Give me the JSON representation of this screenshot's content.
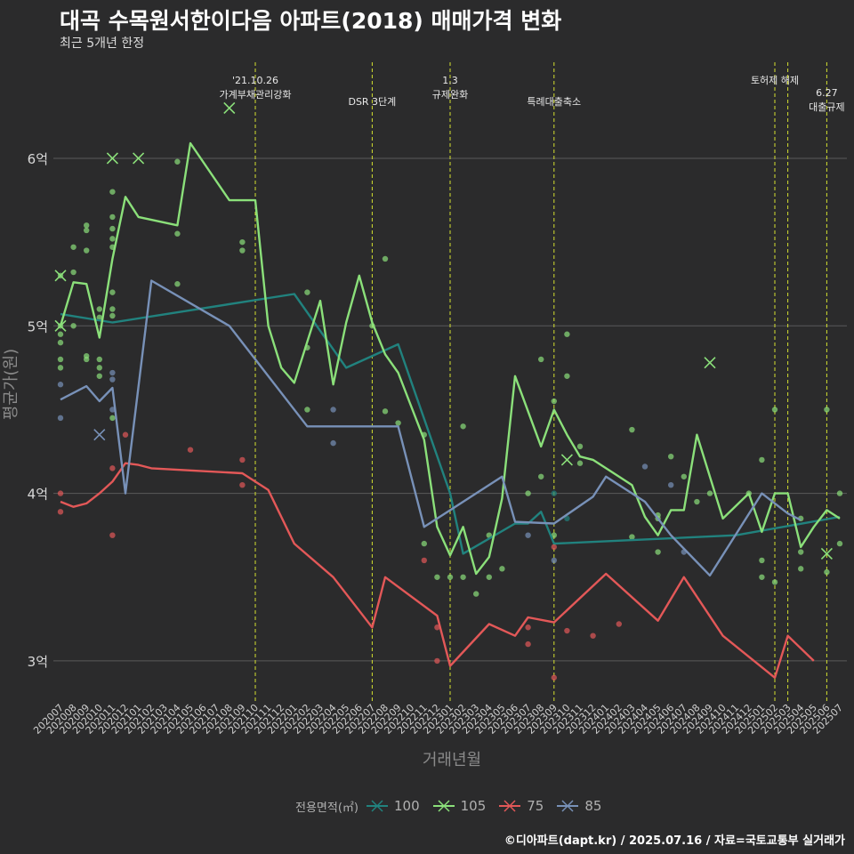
{
  "title": "대곡 수목원서한이다음 아파트(2018) 매매가격 변화",
  "subtitle": "최근 5개년 한정",
  "caption": "©디아파트(dapt.kr) / 2025.07.16 / 자료=국토교통부 실거래가",
  "legend": {
    "title": "전용면적(㎡)",
    "items": [
      {
        "label": "100",
        "color": "#21827e"
      },
      {
        "label": "105",
        "color": "#8be07a"
      },
      {
        "label": "75",
        "color": "#e35858"
      },
      {
        "label": "85",
        "color": "#7891b8"
      }
    ]
  },
  "chart_data": {
    "type": "line",
    "xlabel": "거래년월",
    "ylabel": "평균가(원)",
    "yticks": [
      {
        "value": 3,
        "label": "3억"
      },
      {
        "value": 4,
        "label": "4억"
      },
      {
        "value": 5,
        "label": "5억"
      },
      {
        "value": 6,
        "label": "6억"
      }
    ],
    "ylim": [
      2.75,
      6.6
    ],
    "grid": true,
    "categories": [
      "202007",
      "202008",
      "202009",
      "202010",
      "202011",
      "202012",
      "202101",
      "202102",
      "202103",
      "202104",
      "202105",
      "202106",
      "202107",
      "202108",
      "202109",
      "202110",
      "202111",
      "202112",
      "202201",
      "202202",
      "202203",
      "202204",
      "202205",
      "202206",
      "202207",
      "202208",
      "202209",
      "202210",
      "202211",
      "202212",
      "202301",
      "202302",
      "202303",
      "202304",
      "202305",
      "202306",
      "202307",
      "202308",
      "202309",
      "202310",
      "202311",
      "202312",
      "202401",
      "202402",
      "202403",
      "202404",
      "202405",
      "202406",
      "202407",
      "202408",
      "202409",
      "202410",
      "202411",
      "202412",
      "202501",
      "202502",
      "202503",
      "202504",
      "202505",
      "202506",
      "202507"
    ],
    "events": [
      {
        "x": 15.0,
        "lines": [
          "'21.10.26",
          "가계부채관리강화"
        ],
        "level": 0
      },
      {
        "x": 24.0,
        "lines": [
          "DSR 3단계"
        ],
        "level": 1
      },
      {
        "x": 30.0,
        "lines": [
          "1.3",
          "규제완화"
        ],
        "level": 0
      },
      {
        "x": 38.0,
        "lines": [
          "특례대출축소"
        ],
        "level": 1
      },
      {
        "x": 55.0,
        "lines": [
          "토허제 해제"
        ],
        "level": 0
      },
      {
        "x": 56.0,
        "lines": [],
        "level": 0
      },
      {
        "x": 59.0,
        "lines": [
          "6.27",
          "대출규제"
        ],
        "level": 1
      }
    ],
    "series": [
      {
        "name": "100",
        "color": "#21827e",
        "points": [
          [
            0,
            5.07
          ],
          [
            4,
            5.02
          ],
          [
            18,
            5.19
          ],
          [
            22,
            4.75
          ],
          [
            26,
            4.89
          ],
          [
            30,
            4.0
          ],
          [
            31,
            3.64
          ],
          [
            35,
            3.82
          ],
          [
            36,
            3.82
          ],
          [
            37,
            3.89
          ],
          [
            38,
            3.7
          ],
          [
            52,
            3.75
          ],
          [
            60,
            3.86
          ]
        ]
      },
      {
        "name": "105",
        "color": "#8be07a",
        "points": [
          [
            0,
            5.0
          ],
          [
            1,
            5.26
          ],
          [
            2,
            5.25
          ],
          [
            3,
            4.93
          ],
          [
            4,
            5.4
          ],
          [
            5,
            5.77
          ],
          [
            6,
            5.65
          ],
          [
            9,
            5.6
          ],
          [
            10,
            6.09
          ],
          [
            13,
            5.75
          ],
          [
            15,
            5.75
          ],
          [
            16,
            5.0
          ],
          [
            17,
            4.75
          ],
          [
            18,
            4.66
          ],
          [
            20,
            5.15
          ],
          [
            21,
            4.65
          ],
          [
            22,
            5.02
          ],
          [
            23,
            5.3
          ],
          [
            24,
            5.02
          ],
          [
            25,
            4.83
          ],
          [
            26,
            4.72
          ],
          [
            28,
            4.32
          ],
          [
            29,
            3.8
          ],
          [
            30,
            3.63
          ],
          [
            31,
            3.8
          ],
          [
            32,
            3.52
          ],
          [
            33,
            3.62
          ],
          [
            34,
            3.97
          ],
          [
            35,
            4.7
          ],
          [
            37,
            4.28
          ],
          [
            38,
            4.5
          ],
          [
            39,
            4.35
          ],
          [
            40,
            4.22
          ],
          [
            41,
            4.2
          ],
          [
            43,
            4.1
          ],
          [
            44,
            4.05
          ],
          [
            45,
            3.86
          ],
          [
            46,
            3.75
          ],
          [
            47,
            3.9
          ],
          [
            48,
            3.9
          ],
          [
            49,
            4.35
          ],
          [
            51,
            3.85
          ],
          [
            53,
            4.0
          ],
          [
            54,
            3.77
          ],
          [
            55,
            4.0
          ],
          [
            56,
            4.0
          ],
          [
            57,
            3.68
          ],
          [
            58,
            3.8
          ],
          [
            59,
            3.9
          ],
          [
            60,
            3.85
          ]
        ]
      },
      {
        "name": "75",
        "color": "#e35858",
        "points": [
          [
            0,
            3.95
          ],
          [
            1,
            3.92
          ],
          [
            2,
            3.94
          ],
          [
            3,
            4.0
          ],
          [
            4,
            4.07
          ],
          [
            5,
            4.18
          ],
          [
            6,
            4.17
          ],
          [
            7,
            4.15
          ],
          [
            14,
            4.12
          ],
          [
            16,
            4.02
          ],
          [
            18,
            3.7
          ],
          [
            21,
            3.5
          ],
          [
            24,
            3.2
          ],
          [
            25,
            3.5
          ],
          [
            29,
            3.27
          ],
          [
            30,
            2.97
          ],
          [
            33,
            3.22
          ],
          [
            35,
            3.15
          ],
          [
            36,
            3.26
          ],
          [
            38,
            3.23
          ],
          [
            42,
            3.52
          ],
          [
            46,
            3.24
          ],
          [
            48,
            3.5
          ],
          [
            51,
            3.15
          ],
          [
            55,
            2.9
          ],
          [
            56,
            3.15
          ],
          [
            58,
            3.0
          ]
        ]
      },
      {
        "name": "85",
        "color": "#7891b8",
        "points": [
          [
            0,
            4.56
          ],
          [
            2,
            4.64
          ],
          [
            3,
            4.55
          ],
          [
            4,
            4.63
          ],
          [
            5,
            4.0
          ],
          [
            7,
            5.27
          ],
          [
            13,
            5.0
          ],
          [
            14,
            4.9
          ],
          [
            19,
            4.4
          ],
          [
            26,
            4.4
          ],
          [
            28,
            3.8
          ],
          [
            34,
            4.1
          ],
          [
            35,
            3.83
          ],
          [
            38,
            3.82
          ],
          [
            41,
            3.98
          ],
          [
            42,
            4.1
          ],
          [
            45,
            3.95
          ],
          [
            47,
            3.75
          ],
          [
            50,
            3.51
          ],
          [
            54,
            4.0
          ],
          [
            56,
            3.88
          ],
          [
            57,
            3.84
          ]
        ]
      }
    ],
    "scatter": [
      {
        "series": "105",
        "color": "#8be07a",
        "points": [
          [
            0,
            5.3
          ],
          [
            0,
            5.0
          ],
          [
            0,
            4.95
          ],
          [
            0,
            4.9
          ],
          [
            0,
            4.8
          ],
          [
            0,
            4.75
          ],
          [
            1,
            5.47
          ],
          [
            1,
            5.32
          ],
          [
            1,
            5.0
          ],
          [
            2,
            5.6
          ],
          [
            2,
            5.57
          ],
          [
            2,
            5.45
          ],
          [
            2,
            4.82
          ],
          [
            2,
            4.8
          ],
          [
            3,
            5.1
          ],
          [
            3,
            5.05
          ],
          [
            3,
            4.8
          ],
          [
            3,
            4.75
          ],
          [
            3,
            4.7
          ],
          [
            4,
            5.8
          ],
          [
            4,
            5.65
          ],
          [
            4,
            5.58
          ],
          [
            4,
            5.52
          ],
          [
            4,
            5.47
          ],
          [
            4,
            5.2
          ],
          [
            4,
            5.1
          ],
          [
            4,
            5.06
          ],
          [
            4,
            4.45
          ],
          [
            9,
            5.98
          ],
          [
            9,
            5.55
          ],
          [
            9,
            5.25
          ],
          [
            14,
            5.5
          ],
          [
            14,
            5.45
          ],
          [
            19,
            5.2
          ],
          [
            19,
            4.87
          ],
          [
            19,
            4.5
          ],
          [
            24,
            5.0
          ],
          [
            25,
            5.4
          ],
          [
            25,
            4.49
          ],
          [
            26,
            4.42
          ],
          [
            28,
            4.35
          ],
          [
            28,
            3.7
          ],
          [
            29,
            3.5
          ],
          [
            30,
            3.5
          ],
          [
            31,
            4.4
          ],
          [
            31,
            3.5
          ],
          [
            32,
            3.4
          ],
          [
            33,
            3.5
          ],
          [
            33,
            3.75
          ],
          [
            34,
            3.55
          ],
          [
            36,
            4.0
          ],
          [
            37,
            4.8
          ],
          [
            37,
            4.1
          ],
          [
            38,
            4.55
          ],
          [
            38,
            3.75
          ],
          [
            39,
            4.95
          ],
          [
            39,
            4.7
          ],
          [
            40,
            4.28
          ],
          [
            40,
            4.18
          ],
          [
            44,
            4.38
          ],
          [
            44,
            3.74
          ],
          [
            46,
            3.87
          ],
          [
            46,
            3.85
          ],
          [
            46,
            3.65
          ],
          [
            47,
            4.22
          ],
          [
            48,
            4.1
          ],
          [
            49,
            3.95
          ],
          [
            50,
            4.0
          ],
          [
            53,
            4.0
          ],
          [
            54,
            4.2
          ],
          [
            54,
            3.6
          ],
          [
            54,
            3.5
          ],
          [
            55,
            4.5
          ],
          [
            55,
            3.47
          ],
          [
            57,
            3.85
          ],
          [
            57,
            3.65
          ],
          [
            57,
            3.55
          ],
          [
            59,
            4.5
          ],
          [
            59,
            3.53
          ],
          [
            60,
            4.0
          ],
          [
            60,
            3.7
          ]
        ]
      },
      {
        "series": "75",
        "color": "#e35858",
        "points": [
          [
            0,
            4.0
          ],
          [
            0,
            3.89
          ],
          [
            4,
            4.15
          ],
          [
            4,
            3.75
          ],
          [
            5,
            4.35
          ],
          [
            10,
            4.26
          ],
          [
            14,
            4.2
          ],
          [
            14,
            4.05
          ],
          [
            28,
            3.6
          ],
          [
            29,
            3.2
          ],
          [
            29,
            3.0
          ],
          [
            36,
            3.1
          ],
          [
            36,
            3.2
          ],
          [
            38,
            3.68
          ],
          [
            38,
            2.9
          ],
          [
            39,
            3.18
          ],
          [
            41,
            3.15
          ],
          [
            43,
            3.22
          ]
        ]
      },
      {
        "series": "85",
        "color": "#7891b8",
        "points": [
          [
            0,
            4.65
          ],
          [
            0,
            4.45
          ],
          [
            4,
            4.68
          ],
          [
            4,
            4.5
          ],
          [
            4,
            4.72
          ],
          [
            21,
            4.5
          ],
          [
            21,
            4.3
          ],
          [
            36,
            3.75
          ],
          [
            38,
            3.6
          ],
          [
            45,
            4.16
          ],
          [
            47,
            4.05
          ],
          [
            48,
            3.65
          ]
        ]
      },
      {
        "series": "100",
        "color": "#21827e",
        "points": [
          [
            38,
            4.0
          ],
          [
            39,
            3.85
          ]
        ]
      }
    ],
    "crosses": [
      {
        "x": 0,
        "y": 5.3,
        "color": "#8be07a"
      },
      {
        "x": 0,
        "y": 5.0,
        "color": "#8be07a"
      },
      {
        "x": 4,
        "y": 6.0,
        "color": "#8be07a"
      },
      {
        "x": 6,
        "y": 6.0,
        "color": "#8be07a"
      },
      {
        "x": 13,
        "y": 6.3,
        "color": "#8be07a"
      },
      {
        "x": 3,
        "y": 4.35,
        "color": "#7891b8"
      },
      {
        "x": 39,
        "y": 4.2,
        "color": "#8be07a"
      },
      {
        "x": 50,
        "y": 4.78,
        "color": "#8be07a"
      },
      {
        "x": 59,
        "y": 3.64,
        "color": "#8be07a"
      }
    ]
  }
}
